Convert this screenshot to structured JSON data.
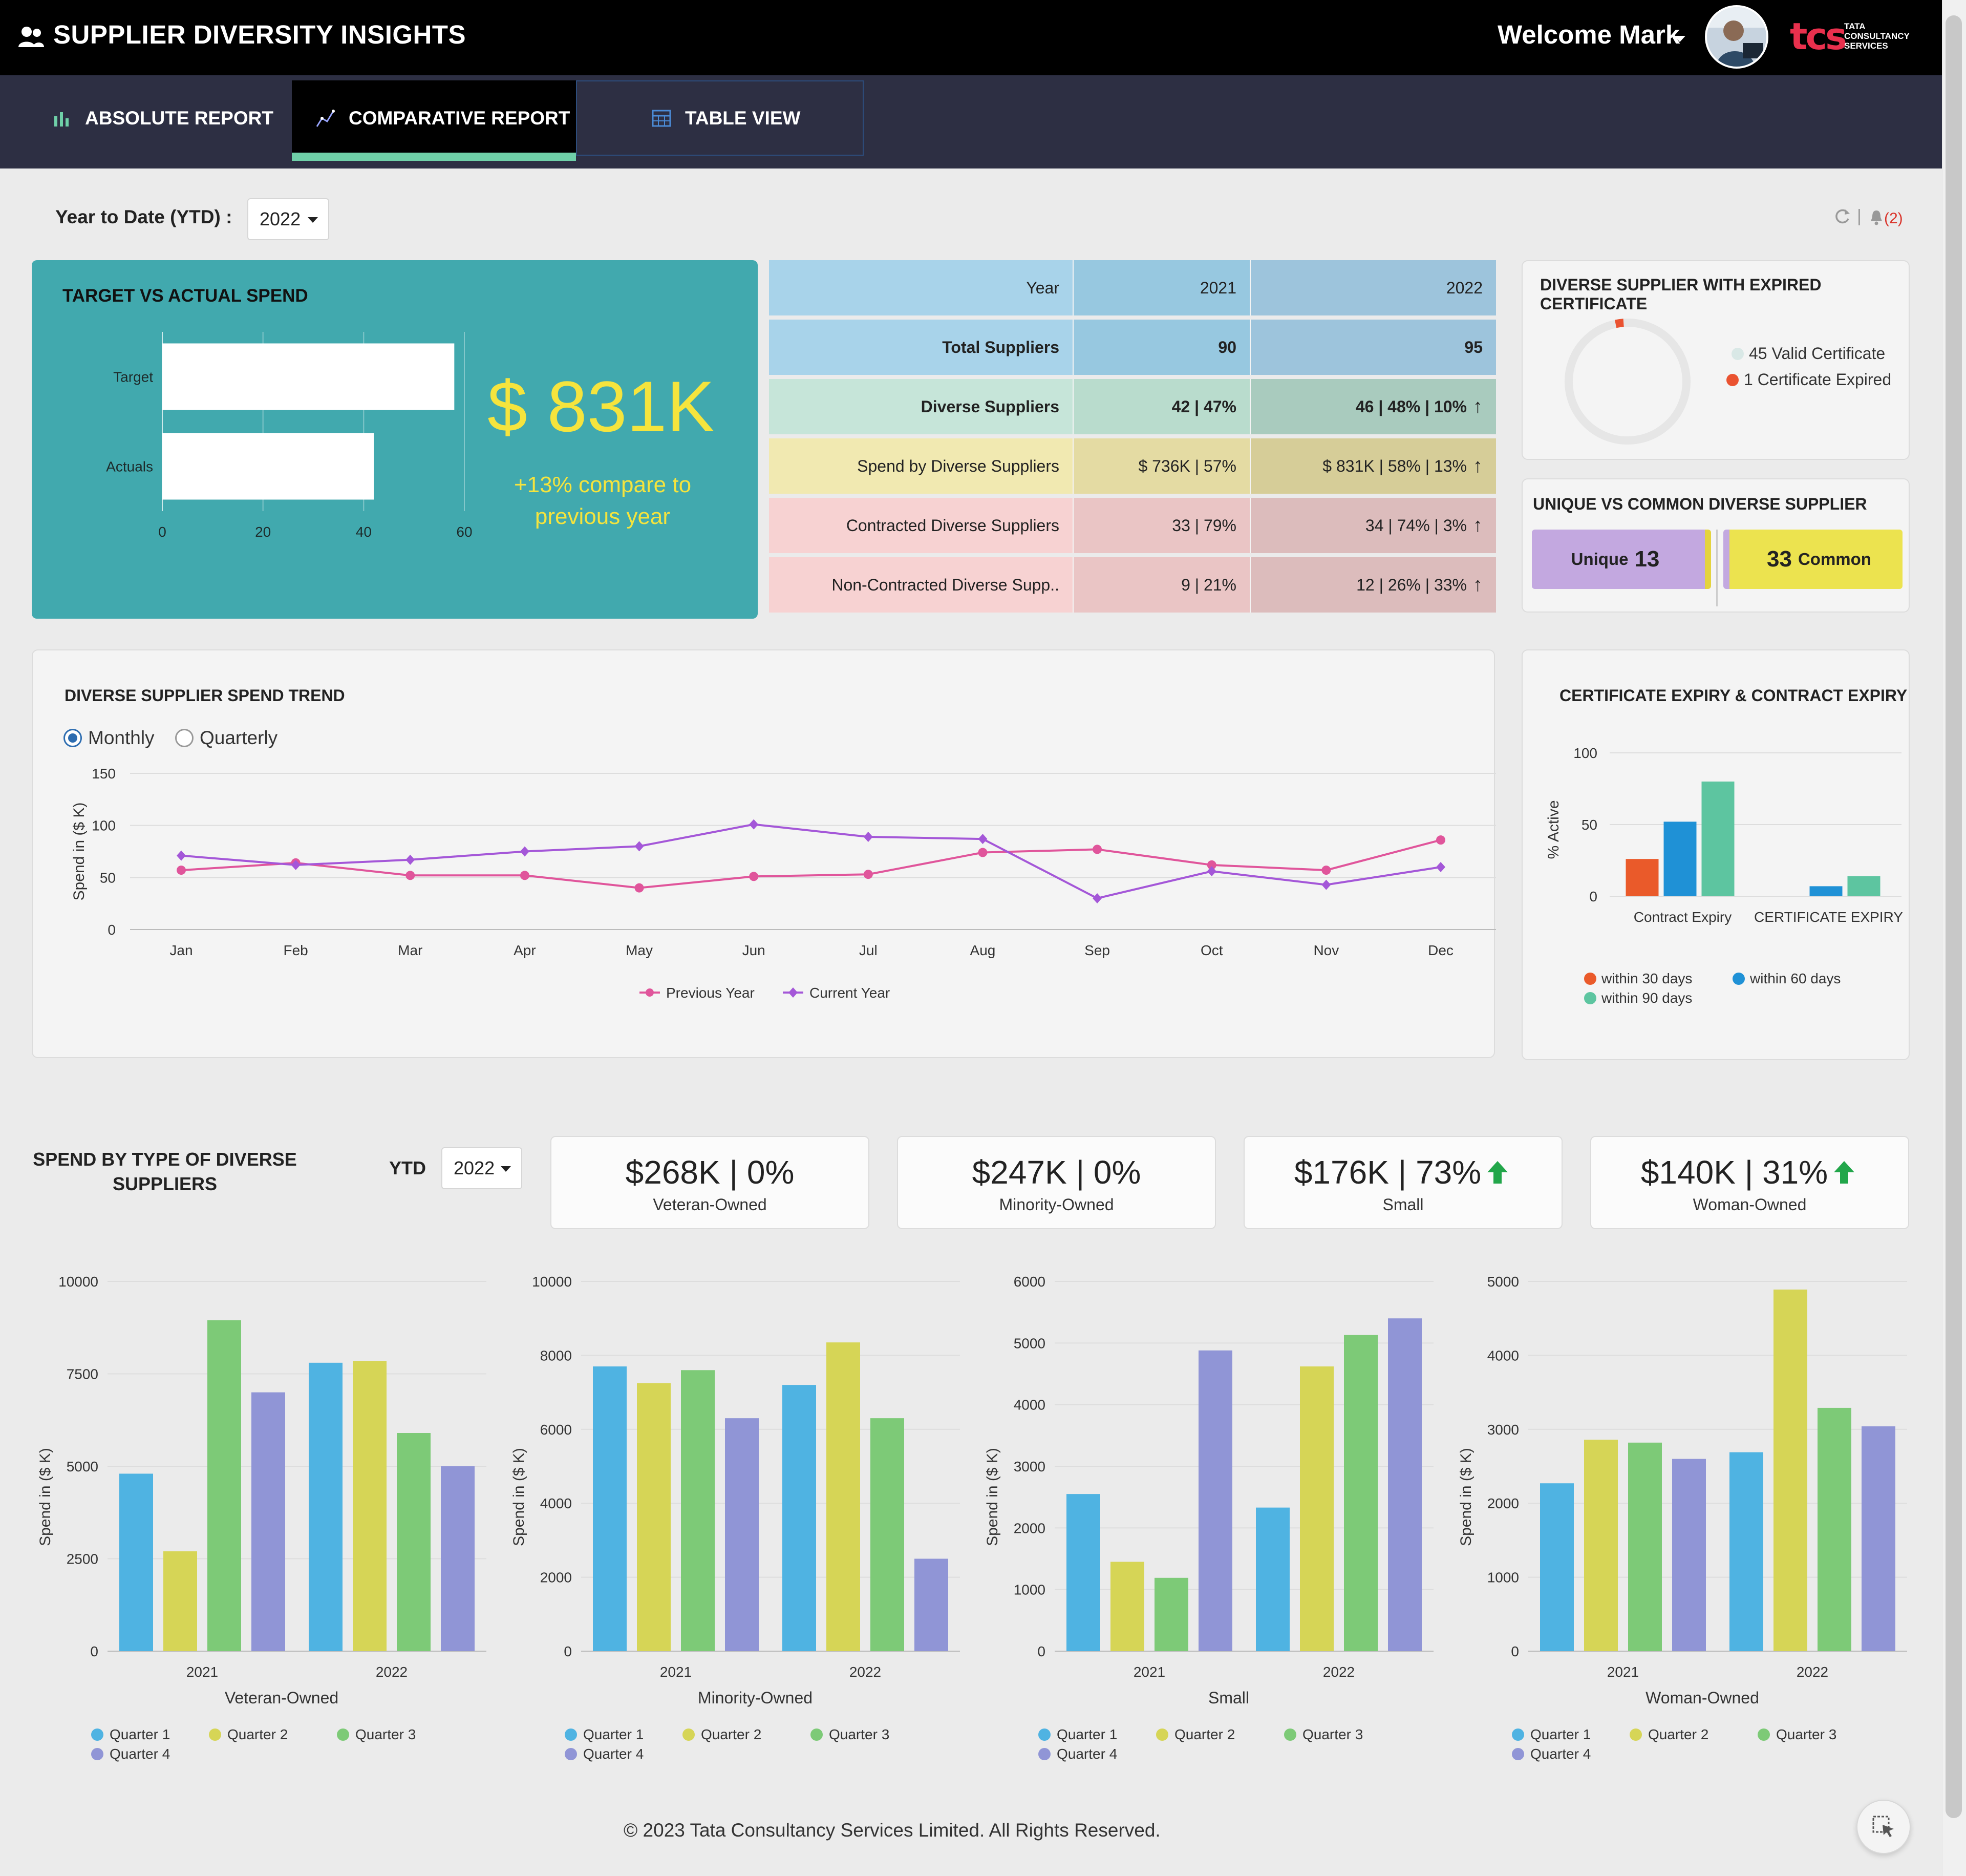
{
  "header": {
    "title": "SUPPLIER DIVERSITY INSIGHTS",
    "welcome": "Welcome Mark",
    "logo_mark": "tcs",
    "logo_lines": [
      "TATA",
      "CONSULTANCY",
      "SERVICES"
    ]
  },
  "tabs": [
    {
      "label": "ABSOLUTE REPORT",
      "icon": "bar-chart-icon",
      "active": false
    },
    {
      "label": "COMPARATIVE REPORT",
      "icon": "line-chart-icon",
      "active": true
    },
    {
      "label": "TABLE VIEW",
      "icon": "table-icon",
      "active": false
    }
  ],
  "filters": {
    "ytd_label": "Year to Date (YTD) :",
    "year": "2022",
    "separator": "|",
    "notifications": "(2)"
  },
  "target_card": {
    "title": "TARGET VS ACTUAL SPEND",
    "value": "$ 831K",
    "compare": "+13% compare to previous year"
  },
  "comparison_table": {
    "header": [
      "Year",
      "2021",
      "2022"
    ],
    "rows": [
      {
        "label": "Total Suppliers",
        "y2021": "90",
        "y2022": "95",
        "trend": "",
        "bold": true,
        "colors": [
          "#a8d3ea",
          "#97c8e0",
          "#9dc4dc"
        ]
      },
      {
        "label": "Diverse Suppliers",
        "y2021": "42 | 47%",
        "y2022": "46 | 48% | 10%",
        "trend": "up",
        "bold": true,
        "colors": [
          "#c6e5d9",
          "#b9dccd",
          "#a9cbbe"
        ]
      },
      {
        "label": "Spend by Diverse Suppliers",
        "y2021": "$ 736K | 57%",
        "y2022": "$ 831K | 58% | 13%",
        "trend": "up",
        "bold": false,
        "colors": [
          "#f1e9b1",
          "#e4dba3",
          "#d6cd98"
        ]
      },
      {
        "label": "Contracted Diverse Suppliers",
        "y2021": "33 | 79%",
        "y2022": "34 | 74% | 3%",
        "trend": "up",
        "bold": false,
        "colors": [
          "#f7d2d2",
          "#eac5c5",
          "#dcbcbc"
        ]
      },
      {
        "label": "Non-Contracted Diverse Supp..",
        "y2021": "9 | 21%",
        "y2022": "12 | 26% | 33%",
        "trend": "up",
        "bold": false,
        "colors": [
          "#f7d2d2",
          "#eac5c5",
          "#dcbcbc"
        ]
      }
    ],
    "header_colors": [
      "#a8d3ea",
      "#97c8e0",
      "#9dc4dc"
    ],
    "trend_icon": "up-arrow-icon"
  },
  "expired_card": {
    "title": "DIVERSE SUPPLIER WITH EXPIRED CERTIFICATE",
    "legend": [
      {
        "label": "45 Valid Certificate",
        "color": "#d9e8e6"
      },
      {
        "label": "1 Certificate Expired",
        "color": "#ea5230"
      }
    ]
  },
  "unique_card": {
    "title": "UNIQUE VS COMMON DIVERSE SUPPLIER",
    "unique_label": "Unique",
    "unique_value": "13",
    "common_value": "33",
    "common_label": "Common"
  },
  "trend_card": {
    "title": "DIVERSE SUPPLIER SPEND TREND",
    "radio_monthly": "Monthly",
    "radio_quarterly": "Quarterly",
    "selected": "Monthly"
  },
  "expiry_card": {
    "title": "CERTIFICATE EXPIRY & CONTRACT EXPIRY",
    "legend": [
      {
        "label": "within 30 days",
        "color": "#ea5a2a"
      },
      {
        "label": "within 60 days",
        "color": "#1f91d6"
      },
      {
        "label": "within 90 days",
        "color": "#5dc5a0"
      }
    ]
  },
  "spend_section": {
    "title": "SPEND BY TYPE OF DIVERSE SUPPLIERS",
    "ytd_label": "YTD",
    "year": "2022",
    "kpis": [
      {
        "value": "$268K | 0%",
        "label": "Veteran-Owned",
        "trend": ""
      },
      {
        "value": "$247K | 0%",
        "label": "Minority-Owned",
        "trend": ""
      },
      {
        "value": "$176K | 73%",
        "label": "Small",
        "trend": "up"
      },
      {
        "value": "$140K | 31%",
        "label": "Woman-Owned",
        "trend": "up"
      }
    ]
  },
  "chart_data": [
    {
      "type": "bar",
      "orientation": "horizontal",
      "title": "TARGET VS ACTUAL SPEND",
      "categories": [
        "Target",
        "Actuals"
      ],
      "values": [
        58,
        42
      ],
      "xlim": [
        0,
        60
      ],
      "xticks": [
        0,
        20,
        40,
        60
      ],
      "color": "#ffffff",
      "grid": true
    },
    {
      "type": "pie",
      "style": "donut",
      "title": "DIVERSE SUPPLIER WITH EXPIRED CERTIFICATE",
      "categories": [
        "Valid Certificate",
        "Certificate Expired"
      ],
      "values": [
        45,
        1
      ],
      "colors": [
        "#e6e6e6",
        "#ea5230"
      ]
    },
    {
      "type": "line",
      "title": "DIVERSE SUPPLIER SPEND TREND",
      "x": [
        "Jan",
        "Feb",
        "Mar",
        "Apr",
        "May",
        "Jun",
        "Jul",
        "Aug",
        "Sep",
        "Oct",
        "Nov",
        "Dec"
      ],
      "ylabel": "Spend in ($ K)",
      "ylim": [
        0,
        150
      ],
      "yticks": [
        0,
        50,
        100,
        150
      ],
      "grid": true,
      "legend": "bottom",
      "series": [
        {
          "name": "Previous Year",
          "color": "#e0559b",
          "marker": "circle",
          "values": [
            57,
            64,
            52,
            52,
            40,
            51,
            53,
            74,
            77,
            62,
            57,
            86
          ]
        },
        {
          "name": "Current Year",
          "color": "#a457d8",
          "marker": "diamond",
          "values": [
            71,
            62,
            67,
            75,
            80,
            101,
            89,
            87,
            30,
            56,
            43,
            60
          ]
        }
      ]
    },
    {
      "type": "bar",
      "title": "CERTIFICATE EXPIRY & CONTRACT EXPIRY",
      "categories": [
        "Contract Expiry",
        "CERTIFICATE EXPIRY"
      ],
      "ylabel": "% Active",
      "ylim": [
        0,
        100
      ],
      "yticks": [
        0,
        50,
        100
      ],
      "legend": "bottom",
      "series": [
        {
          "name": "within 30 days",
          "color": "#ea5a2a",
          "values": [
            26,
            0
          ]
        },
        {
          "name": "within 60 days",
          "color": "#1f91d6",
          "values": [
            52,
            7
          ]
        },
        {
          "name": "within 90 days",
          "color": "#5dc5a0",
          "values": [
            80,
            14
          ]
        }
      ]
    },
    {
      "type": "bar",
      "xlabel": "Veteran-Owned",
      "ylabel": "Spend in ($ K)",
      "categories": [
        "2021",
        "2022"
      ],
      "ylim": [
        0,
        10000
      ],
      "yticks": [
        0,
        2500,
        5000,
        7500,
        10000
      ],
      "legend": "bottom",
      "series": [
        {
          "name": "Quarter 1",
          "color": "#4fb3e2",
          "values": [
            4800,
            7800
          ]
        },
        {
          "name": "Quarter 2",
          "color": "#d6d556",
          "values": [
            2700,
            7850
          ]
        },
        {
          "name": "Quarter 3",
          "color": "#7dca77",
          "values": [
            8950,
            5900
          ]
        },
        {
          "name": "Quarter 4",
          "color": "#9095d6",
          "values": [
            7000,
            5000
          ]
        }
      ]
    },
    {
      "type": "bar",
      "xlabel": "Minority-Owned",
      "ylabel": "Spend in ($ K)",
      "categories": [
        "2021",
        "2022"
      ],
      "ylim": [
        0,
        10000
      ],
      "yticks": [
        0,
        2000,
        4000,
        6000,
        8000,
        10000
      ],
      "legend": "bottom",
      "series": [
        {
          "name": "Quarter 1",
          "color": "#4fb3e2",
          "values": [
            7700,
            7200
          ]
        },
        {
          "name": "Quarter 2",
          "color": "#d6d556",
          "values": [
            7250,
            8350
          ]
        },
        {
          "name": "Quarter 3",
          "color": "#7dca77",
          "values": [
            7600,
            6300
          ]
        },
        {
          "name": "Quarter 4",
          "color": "#9095d6",
          "values": [
            6300,
            2500
          ]
        }
      ]
    },
    {
      "type": "bar",
      "xlabel": "Small",
      "ylabel": "Spend in ($ K)",
      "categories": [
        "2021",
        "2022"
      ],
      "ylim": [
        0,
        6000
      ],
      "yticks": [
        0,
        1000,
        2000,
        3000,
        4000,
        5000,
        6000
      ],
      "legend": "bottom",
      "series": [
        {
          "name": "Quarter 1",
          "color": "#4fb3e2",
          "values": [
            2550,
            2330
          ]
        },
        {
          "name": "Quarter 2",
          "color": "#d6d556",
          "values": [
            1450,
            4620
          ]
        },
        {
          "name": "Quarter 3",
          "color": "#7dca77",
          "values": [
            1190,
            5130
          ]
        },
        {
          "name": "Quarter 4",
          "color": "#9095d6",
          "values": [
            4880,
            5400
          ]
        }
      ]
    },
    {
      "type": "bar",
      "xlabel": "Woman-Owned",
      "ylabel": "Spend in ($ K)",
      "categories": [
        "2021",
        "2022"
      ],
      "ylim": [
        0,
        5000
      ],
      "yticks": [
        0,
        1000,
        2000,
        3000,
        4000,
        5000
      ],
      "legend": "bottom",
      "series": [
        {
          "name": "Quarter 1",
          "color": "#4fb3e2",
          "values": [
            2270,
            2690
          ]
        },
        {
          "name": "Quarter 2",
          "color": "#d6d556",
          "values": [
            2860,
            4890
          ]
        },
        {
          "name": "Quarter 3",
          "color": "#7dca77",
          "values": [
            2820,
            3290
          ]
        },
        {
          "name": "Quarter 4",
          "color": "#9095d6",
          "values": [
            2600,
            3040
          ]
        }
      ]
    }
  ],
  "footer": {
    "text": "© 2023 Tata Consultancy Services Limited. All Rights Reserved."
  }
}
